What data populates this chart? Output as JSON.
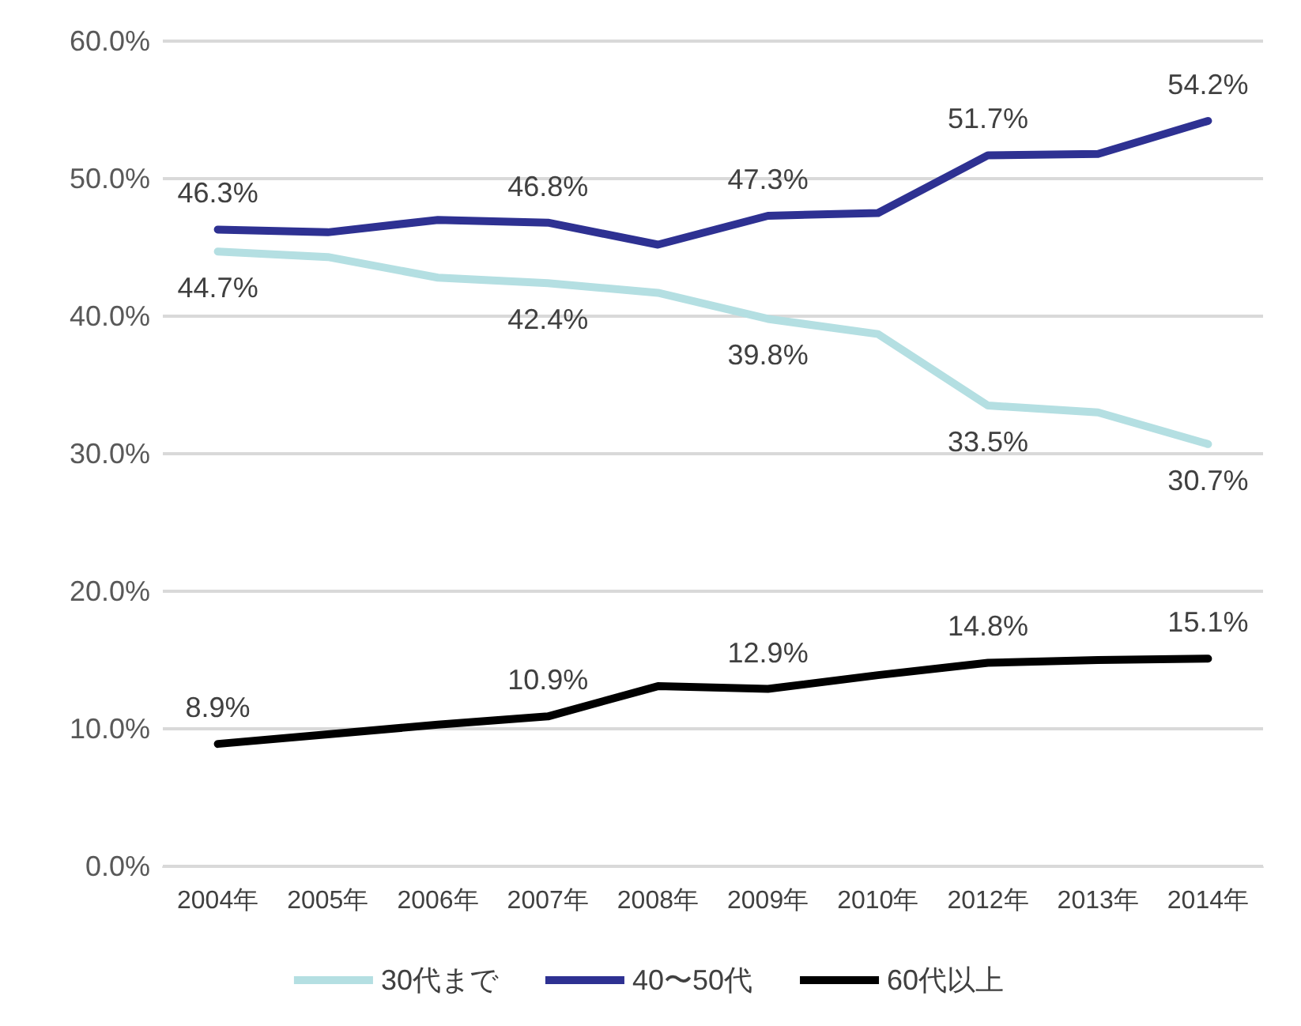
{
  "chart_data": {
    "type": "line",
    "categories": [
      "2004年",
      "2005年",
      "2006年",
      "2007年",
      "2008年",
      "2009年",
      "2010年",
      "2012年",
      "2013年",
      "2014年"
    ],
    "series": [
      {
        "name": "30代まで",
        "color": "#b4dfe2",
        "values": [
          44.7,
          44.3,
          42.8,
          42.4,
          41.7,
          39.8,
          38.7,
          33.5,
          33.0,
          30.7
        ],
        "value_labels": [
          "44.7%",
          null,
          null,
          "42.4%",
          null,
          "39.8%",
          null,
          "33.5%",
          null,
          "30.7%"
        ]
      },
      {
        "name": "40〜50代",
        "color": "#2e3192",
        "values": [
          46.3,
          46.1,
          47.0,
          46.8,
          45.2,
          47.3,
          47.5,
          51.7,
          51.8,
          54.2
        ],
        "value_labels": [
          "46.3%",
          null,
          null,
          "46.8%",
          null,
          "47.3%",
          null,
          "51.7%",
          null,
          "54.2%"
        ]
      },
      {
        "name": "60代以上",
        "color": "#000000",
        "values": [
          8.9,
          9.6,
          10.3,
          10.9,
          13.1,
          12.9,
          13.9,
          14.8,
          15.0,
          15.1
        ],
        "value_labels": [
          "8.9%",
          null,
          null,
          "10.9%",
          null,
          "12.9%",
          null,
          "14.8%",
          null,
          "15.1%"
        ]
      }
    ],
    "ylim": [
      0,
      60
    ],
    "yticks": [
      {
        "value": 0,
        "label": "0.0%"
      },
      {
        "value": 10,
        "label": "10.0%"
      },
      {
        "value": 20,
        "label": "20.0%"
      },
      {
        "value": 30,
        "label": "30.0%"
      },
      {
        "value": 40,
        "label": "40.0%"
      },
      {
        "value": 50,
        "label": "50.0%"
      },
      {
        "value": 60,
        "label": "60.0%"
      }
    ],
    "grid": "y",
    "legend": "bottom",
    "marker": "none",
    "line_style": "solid"
  }
}
